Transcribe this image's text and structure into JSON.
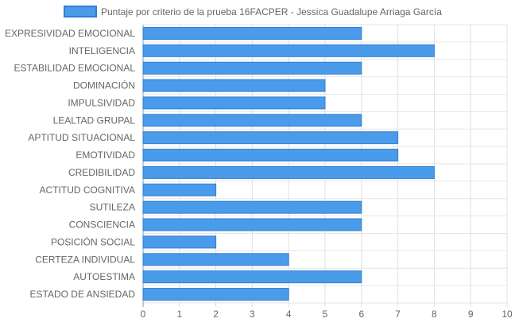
{
  "chart_data": {
    "type": "bar",
    "orientation": "horizontal",
    "series": [
      {
        "name": "Puntaje por criterio de la prueba 16FACPER - Jessica Guadalupe Arriaga García",
        "color": "#4a9be9",
        "border_color": "#2f7fd6",
        "values": [
          6,
          8,
          6,
          5,
          5,
          6,
          7,
          7,
          8,
          2,
          6,
          6,
          2,
          4,
          6,
          4
        ]
      }
    ],
    "categories": [
      "EXPRESIVIDAD EMOCIONAL",
      "INTELIGENCIA",
      "ESTABILIDAD EMOCIONAL",
      "DOMINACIÓN",
      "IMPULSIVIDAD",
      "LEALTAD GRUPAL",
      "APTITUD SITUACIONAL",
      "EMOTIVIDAD",
      "CREDIBILIDAD",
      "ACTITUD COGNITIVA",
      "SUTILEZA",
      "CONSCIENCIA",
      "POSICIÓN SOCIAL",
      "CERTEZA INDIVIDUAL",
      "AUTOESTIMA",
      "ESTADO DE ANSIEDAD"
    ],
    "xlim": [
      0,
      10
    ],
    "xticks": [
      "0",
      "1",
      "2",
      "3",
      "4",
      "5",
      "6",
      "7",
      "8",
      "9",
      "10"
    ],
    "grid": true,
    "legend_position": "top"
  }
}
